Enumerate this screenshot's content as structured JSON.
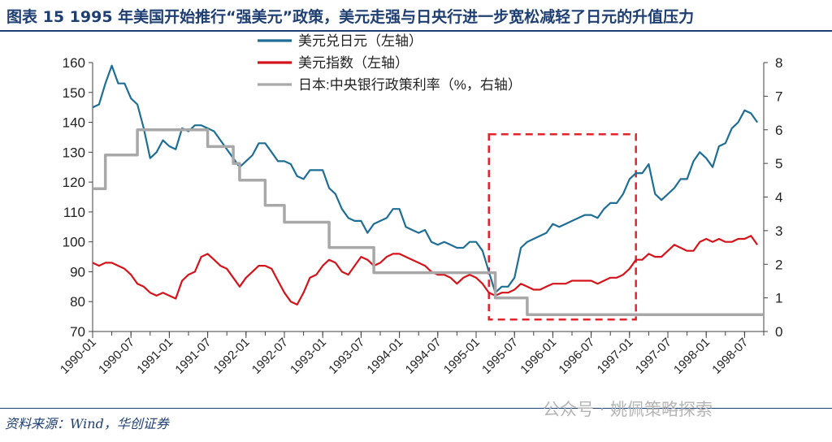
{
  "header": {
    "title": "图表 15  1995 年美国开始推行“强美元”政策，美元走强与日央行进一步宽松减轻了日元的升值压力"
  },
  "footer": {
    "source": "资料来源：Wind，华创证券",
    "watermark": "公众号 · 姚佩策略探索"
  },
  "colors": {
    "usdjpy": "#1e6e95",
    "dxy": "#d4141a",
    "boj": "#a8a8a8",
    "highlight": "#e4232b",
    "title": "#1f3f73"
  },
  "chart_data": {
    "type": "line",
    "x_range": [
      "1990-01",
      "1998-10"
    ],
    "x_ticks": [
      "1990-01",
      "1990-07",
      "1991-01",
      "1991-07",
      "1992-01",
      "1992-07",
      "1993-01",
      "1993-07",
      "1994-01",
      "1994-07",
      "1995-01",
      "1995-07",
      "1996-01",
      "1996-07",
      "1997-01",
      "1997-07",
      "1998-01",
      "1998-07"
    ],
    "y_left": {
      "min": 70,
      "max": 160,
      "ticks": [
        70,
        80,
        90,
        100,
        110,
        120,
        130,
        140,
        150,
        160
      ]
    },
    "y_right": {
      "min": 0,
      "max": 8,
      "ticks": [
        0,
        1,
        2,
        3,
        4,
        5,
        6,
        7,
        8
      ]
    },
    "legend_position": "top-center",
    "grid": false,
    "series": [
      {
        "name": "美元兑日元（左轴）",
        "axis": "left",
        "points": [
          [
            "1990-01",
            145
          ],
          [
            "1990-02",
            146
          ],
          [
            "1990-03",
            153
          ],
          [
            "1990-04",
            159
          ],
          [
            "1990-05",
            153
          ],
          [
            "1990-06",
            153
          ],
          [
            "1990-07",
            148
          ],
          [
            "1990-08",
            146
          ],
          [
            "1990-09",
            138
          ],
          [
            "1990-10",
            128
          ],
          [
            "1990-11",
            130
          ],
          [
            "1990-12",
            134
          ],
          [
            "1991-01",
            132
          ],
          [
            "1991-02",
            131
          ],
          [
            "1991-03",
            138
          ],
          [
            "1991-04",
            137
          ],
          [
            "1991-05",
            139
          ],
          [
            "1991-06",
            139
          ],
          [
            "1991-07",
            138
          ],
          [
            "1991-08",
            137
          ],
          [
            "1991-09",
            134
          ],
          [
            "1991-10",
            131
          ],
          [
            "1991-11",
            128
          ],
          [
            "1991-12",
            125
          ],
          [
            "1992-01",
            127
          ],
          [
            "1992-02",
            129
          ],
          [
            "1992-03",
            133
          ],
          [
            "1992-04",
            133
          ],
          [
            "1992-05",
            130
          ],
          [
            "1992-06",
            127
          ],
          [
            "1992-07",
            127
          ],
          [
            "1992-08",
            126
          ],
          [
            "1992-09",
            122
          ],
          [
            "1992-10",
            121
          ],
          [
            "1992-11",
            124
          ],
          [
            "1992-12",
            124
          ],
          [
            "1993-01",
            124
          ],
          [
            "1993-02",
            118
          ],
          [
            "1993-03",
            116
          ],
          [
            "1993-04",
            111
          ],
          [
            "1993-05",
            108
          ],
          [
            "1993-06",
            107
          ],
          [
            "1993-07",
            107
          ],
          [
            "1993-08",
            103
          ],
          [
            "1993-09",
            106
          ],
          [
            "1993-10",
            107
          ],
          [
            "1993-11",
            108
          ],
          [
            "1993-12",
            111
          ],
          [
            "1994-01",
            111
          ],
          [
            "1994-02",
            105
          ],
          [
            "1994-03",
            104
          ],
          [
            "1994-04",
            103
          ],
          [
            "1994-05",
            104
          ],
          [
            "1994-06",
            100
          ],
          [
            "1994-07",
            99
          ],
          [
            "1994-08",
            100
          ],
          [
            "1994-09",
            99
          ],
          [
            "1994-10",
            98
          ],
          [
            "1994-11",
            98
          ],
          [
            "1994-12",
            100
          ],
          [
            "1995-01",
            100
          ],
          [
            "1995-02",
            97
          ],
          [
            "1995-03",
            90
          ],
          [
            "1995-04",
            83
          ],
          [
            "1995-05",
            85
          ],
          [
            "1995-06",
            85
          ],
          [
            "1995-07",
            88
          ],
          [
            "1995-08",
            98
          ],
          [
            "1995-09",
            100
          ],
          [
            "1995-10",
            101
          ],
          [
            "1995-11",
            102
          ],
          [
            "1995-12",
            103
          ],
          [
            "1996-01",
            106
          ],
          [
            "1996-02",
            105
          ],
          [
            "1996-03",
            106
          ],
          [
            "1996-04",
            107
          ],
          [
            "1996-05",
            108
          ],
          [
            "1996-06",
            109
          ],
          [
            "1996-07",
            109
          ],
          [
            "1996-08",
            108
          ],
          [
            "1996-09",
            111
          ],
          [
            "1996-10",
            113
          ],
          [
            "1996-11",
            113
          ],
          [
            "1996-12",
            116
          ],
          [
            "1997-01",
            121
          ],
          [
            "1997-02",
            123
          ],
          [
            "1997-03",
            123
          ],
          [
            "1997-04",
            126
          ],
          [
            "1997-05",
            116
          ],
          [
            "1997-06",
            114
          ],
          [
            "1997-07",
            116
          ],
          [
            "1997-08",
            118
          ],
          [
            "1997-09",
            121
          ],
          [
            "1997-10",
            121
          ],
          [
            "1997-11",
            127
          ],
          [
            "1997-12",
            130
          ],
          [
            "1998-01",
            128
          ],
          [
            "1998-02",
            125
          ],
          [
            "1998-03",
            132
          ],
          [
            "1998-04",
            133
          ],
          [
            "1998-05",
            138
          ],
          [
            "1998-06",
            140
          ],
          [
            "1998-07",
            144
          ],
          [
            "1998-08",
            143
          ],
          [
            "1998-09",
            140
          ]
        ]
      },
      {
        "name": "美元指数（左轴）",
        "axis": "left",
        "points": [
          [
            "1990-01",
            93
          ],
          [
            "1990-02",
            92
          ],
          [
            "1990-03",
            93
          ],
          [
            "1990-04",
            93
          ],
          [
            "1990-05",
            92
          ],
          [
            "1990-06",
            91
          ],
          [
            "1990-07",
            89
          ],
          [
            "1990-08",
            86
          ],
          [
            "1990-09",
            85
          ],
          [
            "1990-10",
            83
          ],
          [
            "1990-11",
            82
          ],
          [
            "1990-12",
            83
          ],
          [
            "1991-01",
            82
          ],
          [
            "1991-02",
            81
          ],
          [
            "1991-03",
            87
          ],
          [
            "1991-04",
            89
          ],
          [
            "1991-05",
            90
          ],
          [
            "1991-06",
            95
          ],
          [
            "1991-07",
            96
          ],
          [
            "1991-08",
            94
          ],
          [
            "1991-09",
            92
          ],
          [
            "1991-10",
            91
          ],
          [
            "1991-11",
            88
          ],
          [
            "1991-12",
            85
          ],
          [
            "1992-01",
            88
          ],
          [
            "1992-02",
            90
          ],
          [
            "1992-03",
            92
          ],
          [
            "1992-04",
            92
          ],
          [
            "1992-05",
            91
          ],
          [
            "1992-06",
            87
          ],
          [
            "1992-07",
            83
          ],
          [
            "1992-08",
            80
          ],
          [
            "1992-09",
            79
          ],
          [
            "1992-10",
            83
          ],
          [
            "1992-11",
            88
          ],
          [
            "1992-12",
            89
          ],
          [
            "1993-01",
            92
          ],
          [
            "1993-02",
            94
          ],
          [
            "1993-03",
            93
          ],
          [
            "1993-04",
            90
          ],
          [
            "1993-05",
            89
          ],
          [
            "1993-06",
            92
          ],
          [
            "1993-07",
            95
          ],
          [
            "1993-08",
            94
          ],
          [
            "1993-09",
            92
          ],
          [
            "1993-10",
            93
          ],
          [
            "1993-11",
            95
          ],
          [
            "1993-12",
            96
          ],
          [
            "1994-01",
            96
          ],
          [
            "1994-02",
            95
          ],
          [
            "1994-03",
            94
          ],
          [
            "1994-04",
            93
          ],
          [
            "1994-05",
            92
          ],
          [
            "1994-06",
            90
          ],
          [
            "1994-07",
            89
          ],
          [
            "1994-08",
            89
          ],
          [
            "1994-09",
            88
          ],
          [
            "1994-10",
            86
          ],
          [
            "1994-11",
            88
          ],
          [
            "1994-12",
            89
          ],
          [
            "1995-01",
            88
          ],
          [
            "1995-02",
            86
          ],
          [
            "1995-03",
            83
          ],
          [
            "1995-04",
            82
          ],
          [
            "1995-05",
            83
          ],
          [
            "1995-06",
            83
          ],
          [
            "1995-07",
            84
          ],
          [
            "1995-08",
            86
          ],
          [
            "1995-09",
            85
          ],
          [
            "1995-10",
            84
          ],
          [
            "1995-11",
            84
          ],
          [
            "1995-12",
            85
          ],
          [
            "1996-01",
            86
          ],
          [
            "1996-02",
            86
          ],
          [
            "1996-03",
            86
          ],
          [
            "1996-04",
            87
          ],
          [
            "1996-05",
            87
          ],
          [
            "1996-06",
            87
          ],
          [
            "1996-07",
            87
          ],
          [
            "1996-08",
            86
          ],
          [
            "1996-09",
            87
          ],
          [
            "1996-10",
            88
          ],
          [
            "1996-11",
            88
          ],
          [
            "1996-12",
            89
          ],
          [
            "1997-01",
            91
          ],
          [
            "1997-02",
            94
          ],
          [
            "1997-03",
            94
          ],
          [
            "1997-04",
            96
          ],
          [
            "1997-05",
            95
          ],
          [
            "1997-06",
            95
          ],
          [
            "1997-07",
            97
          ],
          [
            "1997-08",
            99
          ],
          [
            "1997-09",
            98
          ],
          [
            "1997-10",
            97
          ],
          [
            "1997-11",
            97
          ],
          [
            "1997-12",
            100
          ],
          [
            "1998-01",
            101
          ],
          [
            "1998-02",
            100
          ],
          [
            "1998-03",
            101
          ],
          [
            "1998-04",
            100
          ],
          [
            "1998-05",
            100
          ],
          [
            "1998-06",
            101
          ],
          [
            "1998-07",
            101
          ],
          [
            "1998-08",
            102
          ],
          [
            "1998-09",
            99
          ]
        ]
      },
      {
        "name": "日本:中央银行政策利率（%，右轴）",
        "axis": "right",
        "step": true,
        "points": [
          [
            "1990-01",
            4.25
          ],
          [
            "1990-03",
            5.25
          ],
          [
            "1990-08",
            6.0
          ],
          [
            "1991-07",
            5.5
          ],
          [
            "1991-11",
            5.0
          ],
          [
            "1991-12",
            4.5
          ],
          [
            "1992-04",
            3.75
          ],
          [
            "1992-07",
            3.25
          ],
          [
            "1993-02",
            2.5
          ],
          [
            "1993-09",
            1.75
          ],
          [
            "1995-04",
            1.0
          ],
          [
            "1995-09",
            0.5
          ],
          [
            "1998-10",
            0.5
          ]
        ]
      }
    ],
    "highlight_box": {
      "x_start": "1995-03",
      "x_end": "1997-02",
      "y_top": 136,
      "y_bottom": 74
    }
  }
}
